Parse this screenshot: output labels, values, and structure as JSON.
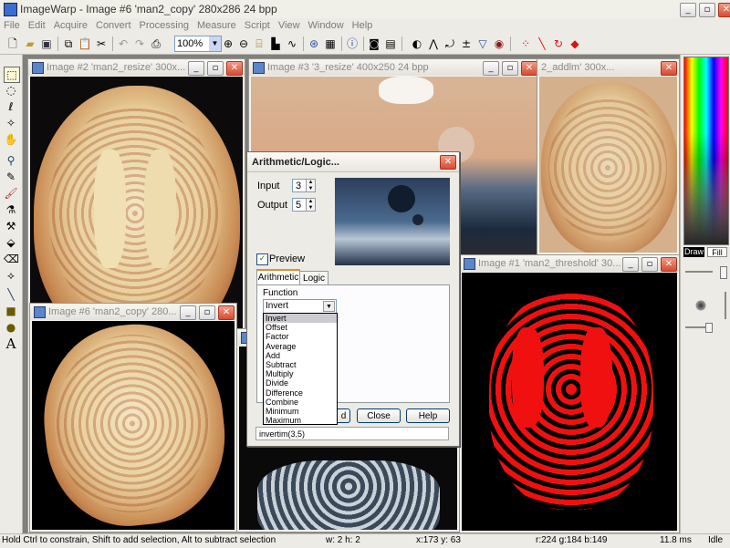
{
  "app": {
    "title": "ImageWarp - Image #6  'man2_copy'  280x286  24 bpp"
  },
  "menu": [
    "File",
    "Edit",
    "Acquire",
    "Convert",
    "Processing",
    "Measure",
    "Script",
    "View",
    "Window",
    "Help"
  ],
  "toolbar": {
    "zoom_value": "100%"
  },
  "windows": {
    "img2": {
      "title": "Image #2  'man2_resize'  300x..."
    },
    "img3": {
      "title": "Image #3  '3_resize'  400x250  24  bpp"
    },
    "img_addlm": {
      "title": "2_addlm'  300x..."
    },
    "img1": {
      "title": "Image #1  'man2_threshold'  30..."
    },
    "img6": {
      "title": "Image #6  'man2_copy'  280..."
    }
  },
  "dialog": {
    "title": "Arithmetic/Logic...",
    "input_label": "Input",
    "input_value": "3",
    "output_label": "Output",
    "output_value": "5",
    "preview_label": "Preview",
    "tabs": [
      "Arithmetic",
      "Logic"
    ],
    "function_label": "Function",
    "function_value": "Invert",
    "options": [
      "Invert",
      "Offset",
      "Factor",
      "Average",
      "Add",
      "Subtract",
      "Multiply",
      "Divide",
      "Difference",
      "Combine",
      "Minimum",
      "Maximum"
    ],
    "buttons": {
      "add": "d",
      "close": "Close",
      "help": "Help"
    },
    "expression": "invertim(3,5)"
  },
  "rightpanel": {
    "draw_label": "Draw",
    "fill_label": "Fill"
  },
  "status": {
    "hint": "Hold Ctrl to constrain, Shift to add selection, Alt to subtract selection",
    "wh": "w:   2  h:   2",
    "xy": "x:173  y: 63",
    "rgb": "r:224  g:184  b:149",
    "time": "11.8 ms",
    "state": "Idle"
  }
}
